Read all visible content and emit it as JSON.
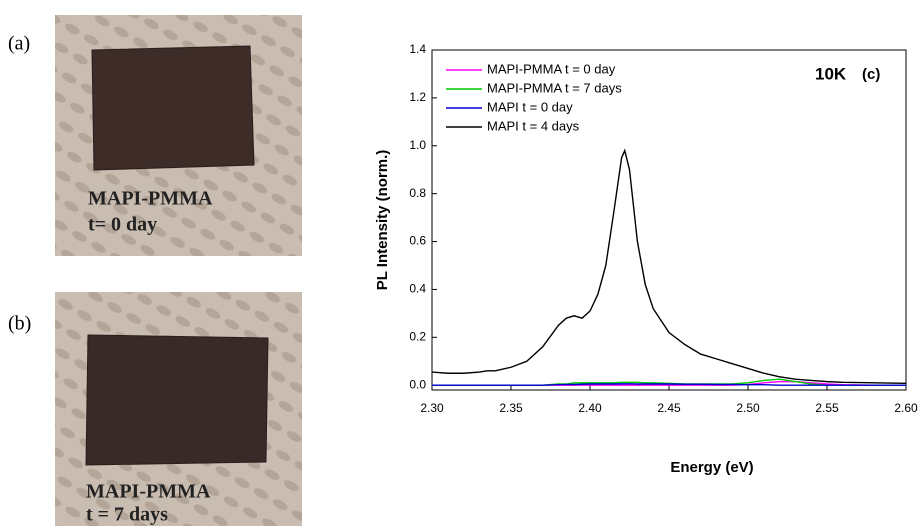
{
  "panels": {
    "a": {
      "label": "(a)",
      "caption": [
        "MAPI-PMMA",
        "t= 0 day"
      ]
    },
    "b": {
      "label": "(b)",
      "caption": [
        "MAPI-PMMA",
        "t = 7 days"
      ]
    }
  },
  "chart_data": {
    "type": "line",
    "x_label": "Energy (eV)",
    "y_label": "PL Intensity (norm.)",
    "annotations": [
      "10K",
      "(c)"
    ],
    "legend": "upper left",
    "xlim": [
      2.3,
      2.6
    ],
    "xticks": [
      {
        "value": 2.3,
        "label": "2.30"
      },
      2.35,
      {
        "value": 2.4,
        "label": "2.40"
      },
      2.45,
      {
        "value": 2.5,
        "label": "2.50"
      },
      2.55,
      {
        "value": 2.6,
        "label": "2.60"
      }
    ],
    "ylim": [
      -0.02,
      1.4
    ],
    "yticks": [
      {
        "value": 0,
        "label": "0.0"
      },
      0.2,
      0.4,
      0.6,
      0.8,
      {
        "value": 1,
        "label": "1.0"
      },
      1.2,
      1.4
    ],
    "x": [
      2.3,
      2.31,
      2.32,
      2.33,
      2.335,
      2.34,
      2.35,
      2.36,
      2.37,
      2.38,
      2.385,
      2.39,
      2.395,
      2.4,
      2.405,
      2.41,
      2.415,
      2.42,
      2.422,
      2.425,
      2.43,
      2.435,
      2.44,
      2.45,
      2.46,
      2.47,
      2.48,
      2.49,
      2.5,
      2.51,
      2.52,
      2.53,
      2.54,
      2.55,
      2.56,
      2.58,
      2.6
    ],
    "series": [
      {
        "name": "MAPI-PMMA t = 0 day",
        "color": "#ff00ff",
        "values": [
          0,
          0,
          0,
          0,
          0,
          0,
          0,
          0,
          0,
          0,
          0,
          0,
          0,
          0,
          0,
          0,
          0,
          0,
          0,
          0,
          0,
          0,
          0,
          0,
          0,
          0,
          0,
          0,
          0.003,
          0.01,
          0.015,
          0.015,
          0.01,
          0.005,
          0.002,
          0,
          0
        ]
      },
      {
        "name": "MAPI-PMMA t = 7 days",
        "color": "#00cc00",
        "values": [
          0,
          0,
          0,
          0,
          0,
          0,
          0,
          0,
          0,
          0.005,
          0.005,
          0.01,
          0.01,
          0.01,
          0.01,
          0.01,
          0.01,
          0.012,
          0.012,
          0.012,
          0.012,
          0.01,
          0.01,
          0.008,
          0.005,
          0.005,
          0.005,
          0.005,
          0.01,
          0.02,
          0.025,
          0.015,
          0.005,
          0,
          0,
          0,
          0
        ]
      },
      {
        "name": "MAPI t = 0 day",
        "color": "#0000cc",
        "values": [
          0,
          0,
          0,
          0,
          0,
          0,
          0,
          0,
          0,
          0.002,
          0.003,
          0.003,
          0.004,
          0.005,
          0.005,
          0.005,
          0.005,
          0.006,
          0.006,
          0.006,
          0.005,
          0.005,
          0.005,
          0.005,
          0.004,
          0.004,
          0.003,
          0.003,
          0.002,
          0.002,
          0,
          0,
          0,
          0,
          0,
          0,
          0
        ]
      },
      {
        "name": "MAPI t = 4 days",
        "color": "#000000",
        "values": [
          0.055,
          0.05,
          0.05,
          0.055,
          0.06,
          0.06,
          0.075,
          0.1,
          0.16,
          0.25,
          0.28,
          0.29,
          0.28,
          0.31,
          0.38,
          0.5,
          0.72,
          0.95,
          0.98,
          0.9,
          0.6,
          0.42,
          0.32,
          0.22,
          0.17,
          0.13,
          0.11,
          0.09,
          0.07,
          0.05,
          0.035,
          0.025,
          0.02,
          0.015,
          0.012,
          0.01,
          0.008
        ]
      }
    ]
  }
}
